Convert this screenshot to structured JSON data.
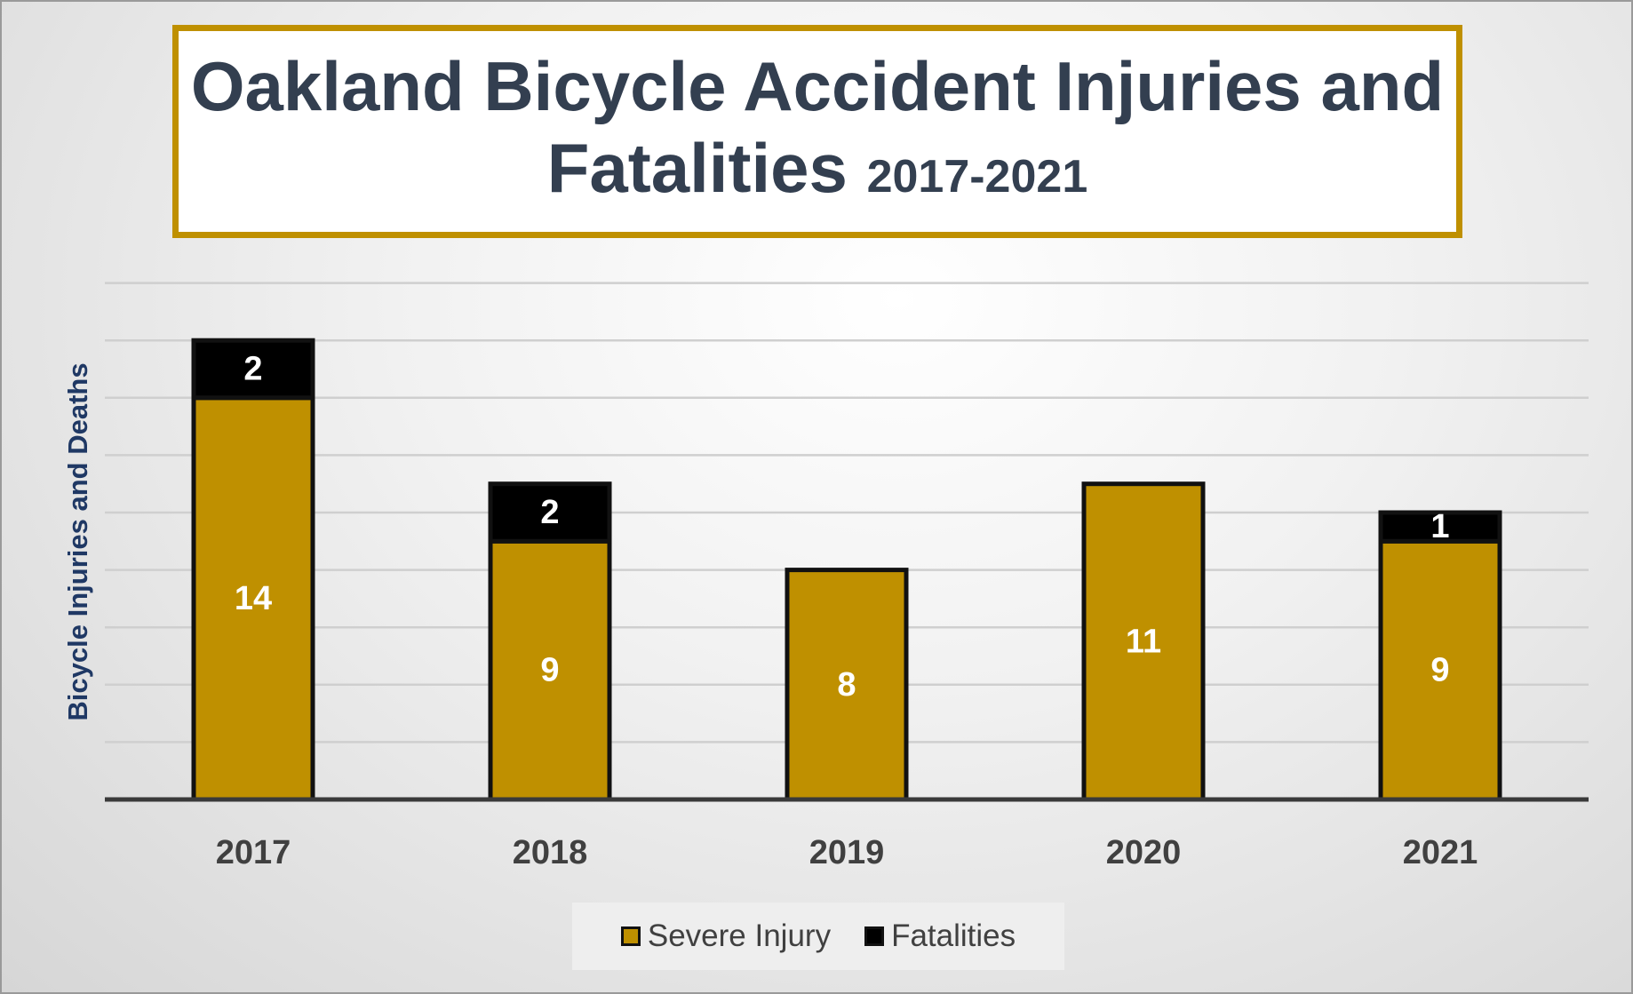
{
  "chart_data": {
    "type": "bar",
    "stacked": true,
    "title": "Oakland Bicycle Accident Injuries and",
    "title_line2": "Fatalities",
    "subtitle": "2017-2021",
    "xlabel": "",
    "ylabel": "Bicycle Injuries and Deaths",
    "categories": [
      "2017",
      "2018",
      "2019",
      "2020",
      "2021"
    ],
    "series": [
      {
        "name": "Severe Injury",
        "color": "#bf9000",
        "values": [
          14,
          9,
          8,
          11,
          9
        ],
        "labels": [
          "14",
          "9",
          "8",
          "11",
          "9"
        ]
      },
      {
        "name": "Fatalities",
        "color": "#000000",
        "values": [
          2,
          2,
          0,
          0,
          1
        ],
        "labels": [
          "2",
          "2",
          "",
          "",
          "1"
        ]
      }
    ],
    "ylim": [
      0,
      18
    ],
    "grid": true,
    "legend": "bottom"
  }
}
